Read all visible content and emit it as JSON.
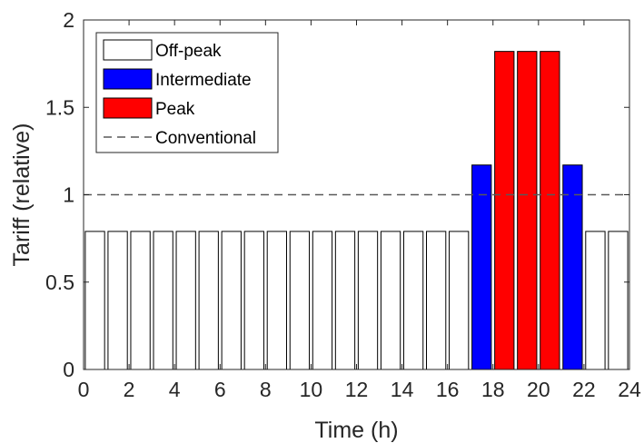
{
  "chart_data": {
    "type": "bar",
    "xlabel": "Time (h)",
    "ylabel": "Tariff (relative)",
    "xlim": [
      0,
      24
    ],
    "ylim": [
      0,
      2
    ],
    "xticks": [
      0,
      2,
      4,
      6,
      8,
      10,
      12,
      14,
      16,
      18,
      20,
      22,
      24
    ],
    "yticks": [
      "0",
      "0.5",
      "1",
      "1.5",
      "2"
    ],
    "ytick_values": [
      0,
      0.5,
      1,
      1.5,
      2
    ],
    "grid": false,
    "legend_position": "top-left",
    "bar_width": 0.85,
    "series": [
      {
        "name": "Off-peak",
        "color": "#ffffff",
        "x": [
          0.5,
          1.5,
          2.5,
          3.5,
          4.5,
          5.5,
          6.5,
          7.5,
          8.5,
          9.5,
          10.5,
          11.5,
          12.5,
          13.5,
          14.5,
          15.5,
          16.5,
          22.5,
          23.5
        ],
        "values": [
          0.79,
          0.79,
          0.79,
          0.79,
          0.79,
          0.79,
          0.79,
          0.79,
          0.79,
          0.79,
          0.79,
          0.79,
          0.79,
          0.79,
          0.79,
          0.79,
          0.79,
          0.79,
          0.79
        ]
      },
      {
        "name": "Intermediate",
        "color": "#0000ff",
        "x": [
          17.5,
          21.5
        ],
        "values": [
          1.17,
          1.17
        ]
      },
      {
        "name": "Peak",
        "color": "#ff0000",
        "x": [
          18.5,
          19.5,
          20.5
        ],
        "values": [
          1.82,
          1.82,
          1.82
        ]
      }
    ],
    "reference_line": {
      "name": "Conventional",
      "value": 1.0,
      "style": "dashed",
      "color": "#595959"
    }
  }
}
